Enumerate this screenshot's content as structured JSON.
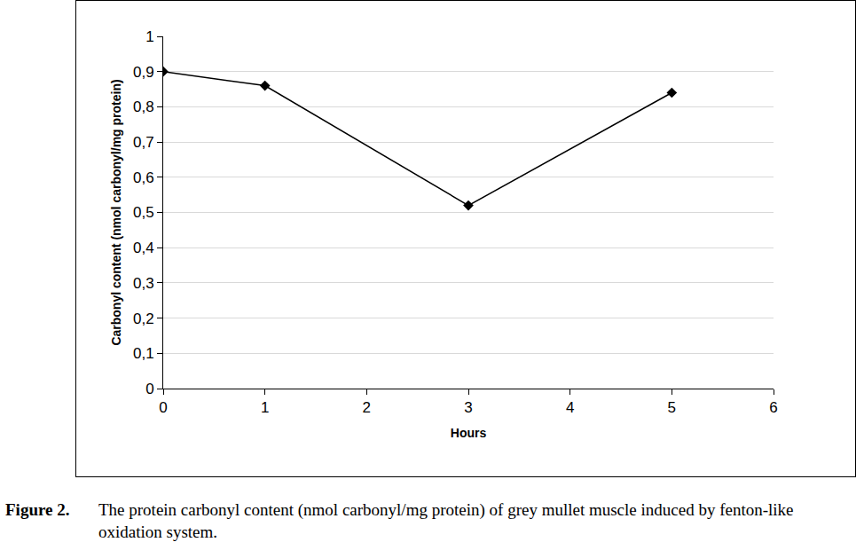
{
  "chart_data": {
    "type": "line",
    "title": "Figure 2. The protein carbonyl content (nmol carbonyl/mg protein) of grey mullet muscle induced by fenton-like oxidation system.",
    "xlabel": "Hours",
    "ylabel": "Carbonyl content (nmol carbonyl/mg protein)",
    "x": [
      0,
      1,
      3,
      5
    ],
    "values": [
      0.9,
      0.86,
      0.52,
      0.84
    ],
    "color": "#000000",
    "marker": "diamond",
    "xlim": [
      0,
      6
    ],
    "xticks": [
      0,
      1,
      2,
      3,
      4,
      5,
      6
    ],
    "ylim": [
      0,
      1
    ],
    "yticks": [
      0,
      {
        "value": 0.1,
        "label": "0,1"
      },
      {
        "value": 0.2,
        "label": "0,2"
      },
      {
        "value": 0.3,
        "label": "0,3"
      },
      {
        "value": 0.4,
        "label": "0,4"
      },
      {
        "value": 0.5,
        "label": "0,5"
      },
      {
        "value": 0.6,
        "label": "0,6"
      },
      {
        "value": 0.7,
        "label": "0,7"
      },
      {
        "value": 0.8,
        "label": "0,8"
      },
      {
        "value": 0.9,
        "label": "0,9"
      },
      1
    ],
    "grid": true
  }
}
